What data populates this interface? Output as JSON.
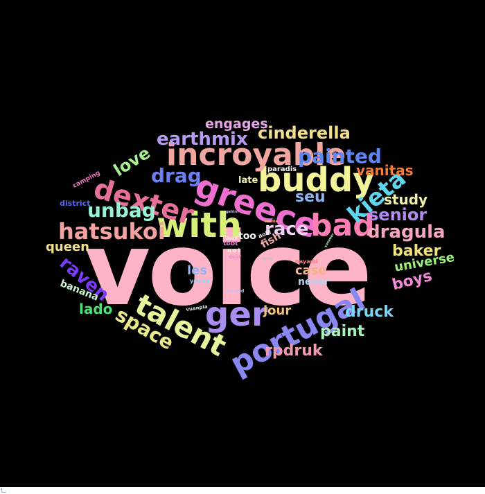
{
  "wordcloud": {
    "background": "#000000",
    "words": [
      {
        "text": "voice",
        "color": "#ffb3c6"
      },
      {
        "text": "with",
        "color": "#d7f07a"
      },
      {
        "text": "greece",
        "color": "#ef6fd0"
      },
      {
        "text": "buddy",
        "color": "#f3f39a"
      },
      {
        "text": "incroyable",
        "color": "#f2a6a0"
      },
      {
        "text": "dexter",
        "color": "#e7709a"
      },
      {
        "text": "bad",
        "color": "#ff7eb6"
      },
      {
        "text": "portugal",
        "color": "#8a86f2"
      },
      {
        "text": "talent",
        "color": "#e4f59c"
      },
      {
        "text": "ger",
        "color": "#a98df0"
      },
      {
        "text": "kieta",
        "color": "#5fd6f0"
      },
      {
        "text": "hatsukoi",
        "color": "#f5a2a2"
      },
      {
        "text": "earthmix",
        "color": "#b79af2"
      },
      {
        "text": "painted",
        "color": "#5f86f2"
      },
      {
        "text": "cinderella",
        "color": "#f4e08a"
      },
      {
        "text": "engages",
        "color": "#e7a6e8"
      },
      {
        "text": "drag",
        "color": "#6b7ff2"
      },
      {
        "text": "love",
        "color": "#a6f08f"
      },
      {
        "text": "unbag",
        "color": "#9af2d6"
      },
      {
        "text": "space",
        "color": "#ebe98a"
      },
      {
        "text": "raven",
        "color": "#7a3bff"
      },
      {
        "text": "race",
        "color": "#f0d0f2"
      },
      {
        "text": "seu",
        "color": "#8fb4f2"
      },
      {
        "text": "senior",
        "color": "#b38af2"
      },
      {
        "text": "dragula",
        "color": "#f7a8c0"
      },
      {
        "text": "study",
        "color": "#f0f2a8"
      },
      {
        "text": "vanitas",
        "color": "#f07c3a"
      },
      {
        "text": "baker",
        "color": "#f2e07c"
      },
      {
        "text": "universe",
        "color": "#9af27a"
      },
      {
        "text": "boys",
        "color": "#f28ad6"
      },
      {
        "text": "druck",
        "color": "#7ad6f2"
      },
      {
        "text": "paint",
        "color": "#a8f2b8"
      },
      {
        "text": "rpdruk",
        "color": "#f29ab0"
      },
      {
        "text": "jour",
        "color": "#f2c07a"
      },
      {
        "text": "queen",
        "color": "#f2e08a"
      },
      {
        "text": "lado",
        "color": "#4ee07a"
      },
      {
        "text": "banana",
        "color": "#c8f2d0"
      },
      {
        "text": "les",
        "color": "#8fb4f2"
      },
      {
        "text": "case",
        "color": "#f2b28a"
      },
      {
        "text": "never",
        "color": "#b8d0f2"
      },
      {
        "text": "fish",
        "color": "#f2a8a8"
      },
      {
        "text": "too",
        "color": "#f2f2f2"
      },
      {
        "text": "late",
        "color": "#f2f2a8"
      },
      {
        "text": "paradis",
        "color": "#f2f2f2"
      },
      {
        "text": "district",
        "color": "#5a6af2"
      },
      {
        "text": "camping",
        "color": "#f27ac0"
      },
      {
        "text": "tbbt",
        "color": "#f27ad6"
      },
      {
        "text": "young",
        "color": "#8fd6f2"
      },
      {
        "text": "nayami",
        "color": "#f27a7a"
      },
      {
        "text": "aoki",
        "color": "#f2f2f2"
      },
      {
        "text": "dead",
        "color": "#f2f2f2"
      },
      {
        "text": "dear",
        "color": "#f28ad6"
      },
      {
        "text": "not",
        "color": "#f2f2f2"
      },
      {
        "text": "vuanpia",
        "color": "#e0e0e0"
      },
      {
        "text": "sve god",
        "color": "#c0c0ff"
      },
      {
        "text": "living",
        "color": "#c0c0c0"
      },
      {
        "text": "gehirn",
        "color": "#c0c0f0"
      },
      {
        "text": "vanilla",
        "color": "#f2c080"
      },
      {
        "text": "summer",
        "color": "#c0f0c0"
      }
    ]
  }
}
